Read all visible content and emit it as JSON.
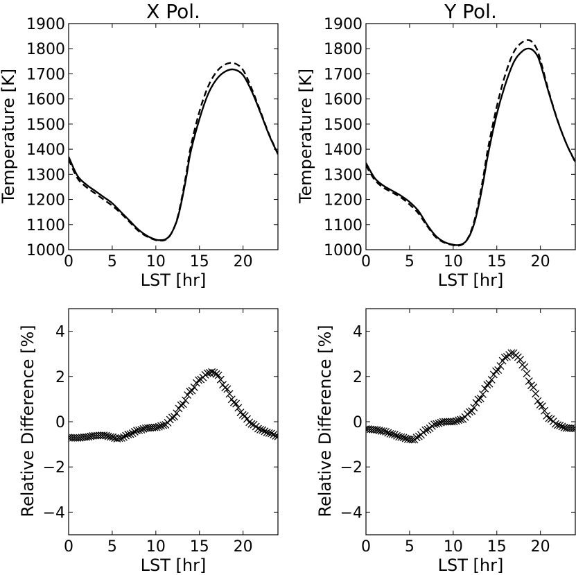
{
  "chart_data": [
    {
      "type": "line",
      "title": "X Pol.",
      "xlabel": "LST [hr]",
      "ylabel": "Temperature [K]",
      "xlim": [
        0,
        24
      ],
      "ylim": [
        1000,
        1900
      ],
      "xticks": [
        0,
        5,
        10,
        15,
        20
      ],
      "yticks": [
        1000,
        1100,
        1200,
        1300,
        1400,
        1500,
        1600,
        1700,
        1800,
        1900
      ],
      "grid": false,
      "series": [
        {
          "name": "solid",
          "style": "solid",
          "x": [
            0,
            1,
            2,
            3,
            4,
            5,
            6,
            7,
            8,
            9,
            10,
            10.5,
            11,
            11.5,
            12,
            12.5,
            13,
            13.5,
            14,
            15,
            16,
            17,
            18,
            19,
            20,
            21,
            22,
            23,
            24
          ],
          "y": [
            1370,
            1295,
            1260,
            1235,
            1210,
            1185,
            1150,
            1115,
            1080,
            1055,
            1040,
            1038,
            1040,
            1052,
            1080,
            1125,
            1200,
            1290,
            1390,
            1520,
            1620,
            1680,
            1710,
            1717,
            1695,
            1630,
            1545,
            1455,
            1380
          ]
        },
        {
          "name": "dashed",
          "style": "dashed",
          "x": [
            0,
            1,
            2,
            3,
            4,
            5,
            6,
            7,
            8,
            9,
            10,
            10.5,
            11,
            11.5,
            12,
            12.5,
            13,
            13.5,
            14,
            15,
            16,
            17,
            18,
            19,
            20,
            21,
            22,
            23,
            24
          ],
          "y": [
            1360,
            1285,
            1250,
            1225,
            1200,
            1175,
            1145,
            1110,
            1075,
            1052,
            1038,
            1036,
            1038,
            1050,
            1080,
            1130,
            1210,
            1305,
            1410,
            1550,
            1650,
            1710,
            1738,
            1742,
            1715,
            1640,
            1550,
            1458,
            1382
          ]
        }
      ]
    },
    {
      "type": "line",
      "title": "Y Pol.",
      "xlabel": "LST [hr]",
      "ylabel": "Temperature [K]",
      "xlim": [
        0,
        24
      ],
      "ylim": [
        1000,
        1900
      ],
      "xticks": [
        0,
        5,
        10,
        15,
        20
      ],
      "yticks": [
        1000,
        1100,
        1200,
        1300,
        1400,
        1500,
        1600,
        1700,
        1800,
        1900
      ],
      "grid": false,
      "series": [
        {
          "name": "solid",
          "style": "solid",
          "x": [
            0,
            1,
            2,
            3,
            4,
            5,
            6,
            7,
            8,
            9,
            10,
            10.5,
            11,
            11.5,
            12,
            12.5,
            13,
            13.5,
            14,
            15,
            16,
            17,
            18,
            18.8,
            19.5,
            20,
            21,
            22,
            23,
            24
          ],
          "y": [
            1345,
            1285,
            1255,
            1235,
            1215,
            1190,
            1155,
            1100,
            1055,
            1030,
            1020,
            1018,
            1022,
            1035,
            1065,
            1115,
            1190,
            1280,
            1380,
            1540,
            1660,
            1750,
            1792,
            1800,
            1780,
            1740,
            1620,
            1510,
            1420,
            1350
          ]
        },
        {
          "name": "dashed",
          "style": "dashed",
          "x": [
            0,
            1,
            2,
            3,
            4,
            5,
            6,
            7,
            8,
            9,
            10,
            10.5,
            11,
            11.5,
            12,
            12.5,
            13,
            13.5,
            14,
            15,
            16,
            17,
            18,
            18.8,
            19.5,
            20,
            21,
            22,
            23,
            24
          ],
          "y": [
            1335,
            1278,
            1247,
            1228,
            1208,
            1180,
            1145,
            1095,
            1050,
            1028,
            1018,
            1016,
            1020,
            1035,
            1070,
            1125,
            1205,
            1300,
            1405,
            1570,
            1700,
            1790,
            1828,
            1833,
            1805,
            1755,
            1625,
            1512,
            1420,
            1348
          ]
        }
      ]
    },
    {
      "type": "scatter",
      "title": "",
      "xlabel": "LST [hr]",
      "ylabel": "Relative Difference [%]",
      "xlim": [
        0,
        24
      ],
      "ylim": [
        -5,
        5
      ],
      "xticks": [
        0,
        5,
        10,
        15,
        20
      ],
      "yticks": [
        -4,
        -2,
        0,
        2,
        4
      ],
      "grid": false,
      "marker": "x",
      "series": [
        {
          "name": "relative difference",
          "x": [
            0,
            1,
            2,
            3,
            4,
            5,
            5.5,
            6,
            7,
            8,
            9,
            10,
            11,
            12,
            13,
            14,
            15,
            16,
            16.5,
            17,
            18,
            19,
            20,
            21,
            22,
            23,
            24
          ],
          "y": [
            -0.7,
            -0.72,
            -0.68,
            -0.62,
            -0.6,
            -0.68,
            -0.75,
            -0.72,
            -0.55,
            -0.38,
            -0.28,
            -0.25,
            -0.15,
            0.2,
            0.75,
            1.35,
            1.85,
            2.15,
            2.2,
            2.1,
            1.5,
            0.85,
            0.3,
            -0.1,
            -0.35,
            -0.5,
            -0.65
          ]
        }
      ]
    },
    {
      "type": "scatter",
      "title": "",
      "xlabel": "LST [hr]",
      "ylabel": "Relative Difference [%]",
      "xlim": [
        0,
        24
      ],
      "ylim": [
        -5,
        5
      ],
      "xticks": [
        0,
        5,
        10,
        15,
        20
      ],
      "yticks": [
        -4,
        -2,
        0,
        2,
        4
      ],
      "grid": false,
      "marker": "x",
      "series": [
        {
          "name": "relative difference",
          "x": [
            0,
            1,
            2,
            3,
            4,
            5,
            5.5,
            6,
            7,
            8,
            9,
            10,
            11,
            12,
            13,
            14,
            15,
            16,
            16.8,
            17.5,
            18,
            19,
            20,
            21,
            22,
            23,
            24
          ],
          "y": [
            -0.32,
            -0.35,
            -0.42,
            -0.55,
            -0.68,
            -0.78,
            -0.8,
            -0.65,
            -0.35,
            -0.1,
            0,
            0,
            0.1,
            0.45,
            1.0,
            1.65,
            2.25,
            2.85,
            3.05,
            2.85,
            2.5,
            1.6,
            0.75,
            0.15,
            -0.15,
            -0.28,
            -0.3
          ]
        }
      ]
    }
  ]
}
